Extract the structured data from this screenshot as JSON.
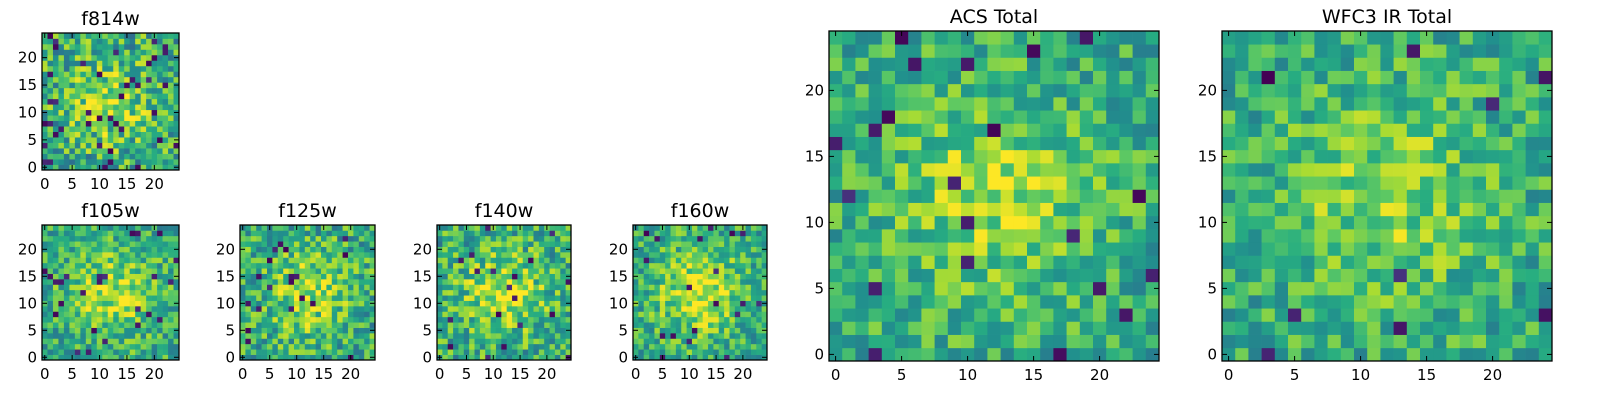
{
  "figure": {
    "panels_count": 7
  },
  "chart_data": [
    {
      "type": "heatmap",
      "title": "f814w",
      "colormap": "viridis",
      "grid_size": 25,
      "xlim": [
        -0.5,
        24.5
      ],
      "ylim": [
        -0.5,
        24.5
      ],
      "xticks": [
        0,
        5,
        10,
        15,
        20
      ],
      "yticks": [
        0,
        5,
        10,
        15,
        20
      ],
      "noise_seed": 11,
      "noise_amplitude": 0.55,
      "center_brightness": 0.35,
      "dark_fraction": 0.06
    },
    {
      "type": "heatmap",
      "title": "f105w",
      "colormap": "viridis",
      "grid_size": 25,
      "xlim": [
        -0.5,
        24.5
      ],
      "ylim": [
        -0.5,
        24.5
      ],
      "xticks": [
        0,
        5,
        10,
        15,
        20
      ],
      "yticks": [
        0,
        5,
        10,
        15,
        20
      ],
      "noise_seed": 23,
      "noise_amplitude": 0.45,
      "center_brightness": 0.45,
      "dark_fraction": 0.035
    },
    {
      "type": "heatmap",
      "title": "f125w",
      "colormap": "viridis",
      "grid_size": 25,
      "xlim": [
        -0.5,
        24.5
      ],
      "ylim": [
        -0.5,
        24.5
      ],
      "xticks": [
        0,
        5,
        10,
        15,
        20
      ],
      "yticks": [
        0,
        5,
        10,
        15,
        20
      ],
      "noise_seed": 37,
      "noise_amplitude": 0.5,
      "center_brightness": 0.4,
      "dark_fraction": 0.035
    },
    {
      "type": "heatmap",
      "title": "f140w",
      "colormap": "viridis",
      "grid_size": 25,
      "xlim": [
        -0.5,
        24.5
      ],
      "ylim": [
        -0.5,
        24.5
      ],
      "xticks": [
        0,
        5,
        10,
        15,
        20
      ],
      "yticks": [
        0,
        5,
        10,
        15,
        20
      ],
      "noise_seed": 41,
      "noise_amplitude": 0.5,
      "center_brightness": 0.45,
      "dark_fraction": 0.035
    },
    {
      "type": "heatmap",
      "title": "f160w",
      "colormap": "viridis",
      "grid_size": 25,
      "xlim": [
        -0.5,
        24.5
      ],
      "ylim": [
        -0.5,
        24.5
      ],
      "xticks": [
        0,
        5,
        10,
        15,
        20
      ],
      "yticks": [
        0,
        5,
        10,
        15,
        20
      ],
      "noise_seed": 53,
      "noise_amplitude": 0.45,
      "center_brightness": 0.55,
      "dark_fraction": 0.04
    },
    {
      "type": "heatmap",
      "title": "ACS Total",
      "colormap": "viridis",
      "grid_size": 25,
      "xlim": [
        -0.5,
        24.5
      ],
      "ylim": [
        -0.5,
        24.5
      ],
      "xticks": [
        0,
        5,
        10,
        15,
        20
      ],
      "yticks": [
        0,
        5,
        10,
        15,
        20
      ],
      "noise_seed": 67,
      "noise_amplitude": 0.4,
      "center_brightness": 0.4,
      "dark_fraction": 0.025
    },
    {
      "type": "heatmap",
      "title": "WFC3 IR Total",
      "colormap": "viridis",
      "grid_size": 25,
      "xlim": [
        -0.5,
        24.5
      ],
      "ylim": [
        -0.5,
        24.5
      ],
      "xticks": [
        0,
        5,
        10,
        15,
        20
      ],
      "yticks": [
        0,
        5,
        10,
        15,
        20
      ],
      "noise_seed": 79,
      "noise_amplitude": 0.4,
      "center_brightness": 0.35,
      "dark_fraction": 0.02
    }
  ]
}
